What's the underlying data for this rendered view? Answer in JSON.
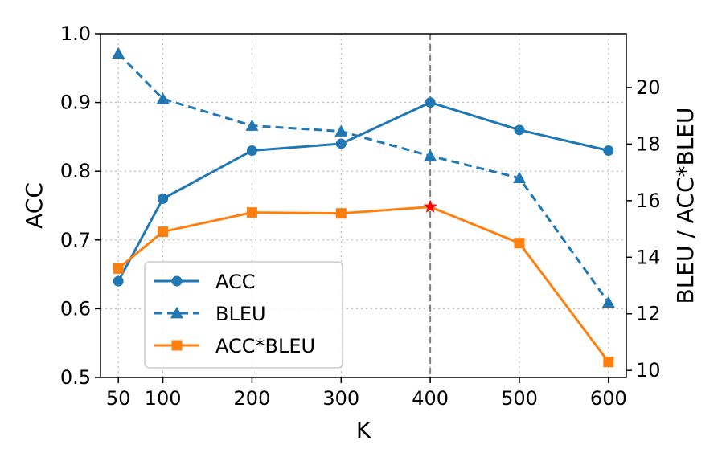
{
  "chart_data": {
    "type": "line",
    "xlabel": "K",
    "ylabel_left": "ACC",
    "ylabel_right": "BLEU / ACC*BLEU",
    "x": [
      50,
      100,
      200,
      300,
      400,
      500,
      600
    ],
    "x_ticks": [
      "50",
      "100",
      "200",
      "300",
      "400",
      "500",
      "600"
    ],
    "xlim": [
      30,
      620
    ],
    "ylim_left": [
      0.5,
      1.0
    ],
    "y_ticks_left": [
      "0.5",
      "0.6",
      "0.7",
      "0.8",
      "0.9",
      "1.0"
    ],
    "ylim_right": [
      9.75,
      21.9
    ],
    "y_ticks_right": [
      "10",
      "12",
      "14",
      "16",
      "18",
      "20"
    ],
    "grid": true,
    "legend_position": "lower-left",
    "vline_x": 400,
    "highlight": {
      "x": 400,
      "y": 15.78,
      "series": "ACC*BLEU",
      "marker": "star",
      "color": "#ff0000"
    },
    "series": [
      {
        "name": "ACC",
        "axis": "left",
        "values": [
          0.64,
          0.76,
          0.83,
          0.84,
          0.9,
          0.86,
          0.83
        ],
        "color": "#1f77b4",
        "marker": "circle",
        "line": "solid"
      },
      {
        "name": "BLEU",
        "axis": "right",
        "values": [
          21.2,
          19.6,
          18.65,
          18.45,
          17.58,
          16.8,
          12.4
        ],
        "color": "#1f77b4",
        "marker": "triangle",
        "line": "dashed"
      },
      {
        "name": "ACC*BLEU",
        "axis": "right",
        "values": [
          13.6,
          14.9,
          15.58,
          15.55,
          15.78,
          14.5,
          10.3
        ],
        "color": "#ff7f0e",
        "marker": "square",
        "line": "solid"
      }
    ]
  }
}
